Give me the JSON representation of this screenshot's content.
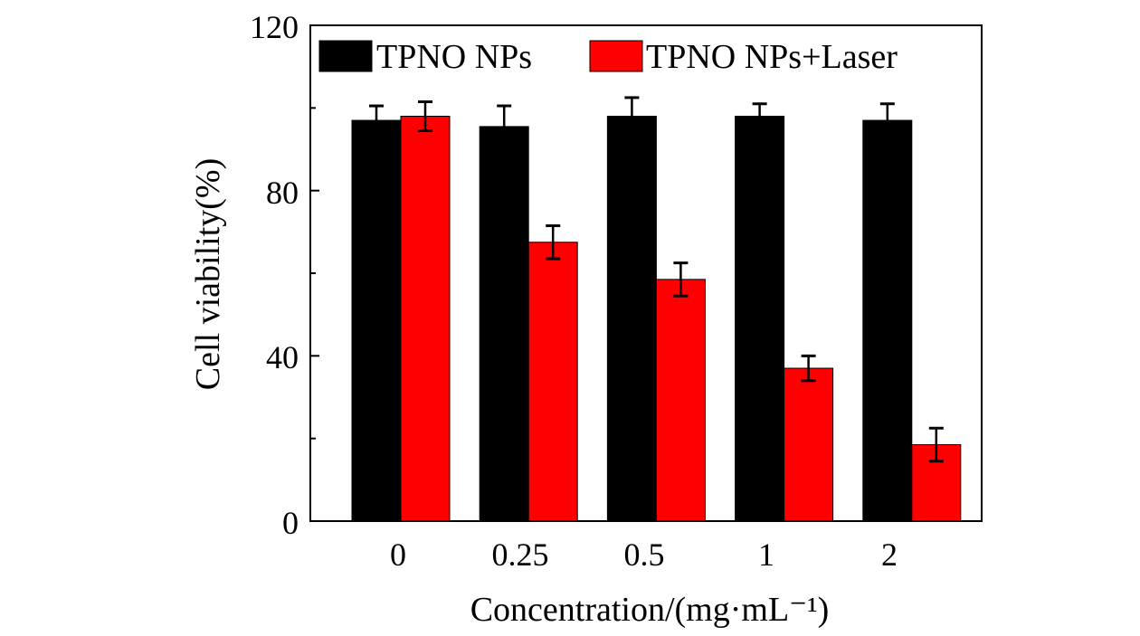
{
  "chart_data": {
    "type": "bar",
    "title": "",
    "xlabel": "Concentration/(mg·mL⁻¹)",
    "ylabel": "Cell viability(%)",
    "categories": [
      "0",
      "0.25",
      "0.5",
      "1",
      "2"
    ],
    "ylim": [
      0,
      120
    ],
    "yticks": [
      0,
      40,
      80,
      120
    ],
    "yticklabels": [
      "0",
      "40",
      "80",
      "120"
    ],
    "legend_position": "top",
    "series": [
      {
        "name": "TPNO NPs",
        "color": "#000000",
        "values": [
          97,
          95.5,
          98,
          98,
          97
        ],
        "errors": [
          3.5,
          5,
          4.5,
          3,
          4
        ]
      },
      {
        "name": "TPNO NPs+Laser",
        "color": "#ff0000",
        "values": [
          98,
          67.5,
          58.5,
          37,
          18.5
        ],
        "errors": [
          3.5,
          4,
          4,
          3,
          4
        ]
      }
    ]
  }
}
